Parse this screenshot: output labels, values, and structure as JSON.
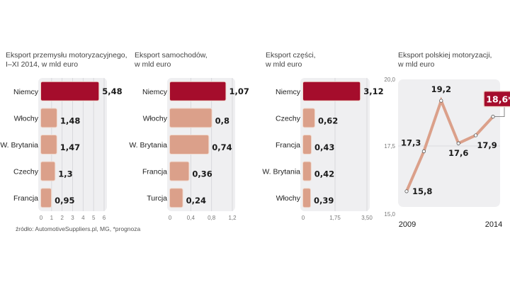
{
  "colors": {
    "highlight": "#a50d2c",
    "bar": "#dba08a",
    "bar_border": "#f0d8cc",
    "panel_bg": "#efeff1",
    "line": "#dba08a"
  },
  "source": "źródło: AutomotiveSuppliers.pl, MG, *prognoza",
  "chart_data": [
    {
      "type": "bar",
      "orientation": "horizontal",
      "title": "Eksport przemysłu motoryzacyjnego,\nI–XI 2014, w mld euro",
      "title_lines": [
        "Eksport przemysłu motoryzacyjnego,",
        "I–XI 2014, w mld euro"
      ],
      "categories": [
        "Niemcy",
        "Włochy",
        "W. Brytania",
        "Czechy",
        "Francja"
      ],
      "values": [
        5.48,
        1.48,
        1.47,
        1.3,
        0.95
      ],
      "value_labels": [
        "5,48",
        "1,48",
        "1,47",
        "1,3",
        "0,95"
      ],
      "highlight_index": 0,
      "xlim": [
        0,
        6
      ],
      "ticks": [
        0,
        1,
        2,
        3,
        4,
        5,
        6
      ],
      "tick_labels": [
        "0",
        "1",
        "2",
        "3",
        "4",
        "5",
        "6"
      ],
      "grid": true
    },
    {
      "type": "bar",
      "orientation": "horizontal",
      "title": "Eksport samochodów,\nw mld euro",
      "title_lines": [
        "Eksport samochodów,",
        "w mld euro"
      ],
      "categories": [
        "Niemcy",
        "Włochy",
        "W. Brytania",
        "Francja",
        "Turcja"
      ],
      "values": [
        1.07,
        0.8,
        0.74,
        0.36,
        0.24
      ],
      "value_labels": [
        "1,07",
        "0,8",
        "0,74",
        "0,36",
        "0,24"
      ],
      "highlight_index": 0,
      "xlim": [
        0,
        1.2
      ],
      "ticks": [
        0,
        0.4,
        0.8,
        1.2
      ],
      "tick_labels": [
        "0",
        "0,4",
        "0,8",
        "1,2"
      ],
      "grid": true
    },
    {
      "type": "bar",
      "orientation": "horizontal",
      "title": "Eksport części,\nw mld euro",
      "title_lines": [
        "Eksport części,",
        "w mld euro"
      ],
      "categories": [
        "Niemcy",
        "Czechy",
        "Francja",
        "W. Brytania",
        "Włochy"
      ],
      "values": [
        3.12,
        0.62,
        0.43,
        0.42,
        0.39
      ],
      "value_labels": [
        "3,12",
        "0,62",
        "0,43",
        "0,42",
        "0,39"
      ],
      "highlight_index": 0,
      "xlim": [
        0,
        3.5
      ],
      "ticks": [
        0,
        1.75,
        3.5
      ],
      "tick_labels": [
        "0",
        "1,75",
        "3,50"
      ],
      "grid": true
    },
    {
      "type": "line",
      "title": "Eksport polskiej motoryzacji,\nw mld euro",
      "title_lines": [
        "Eksport polskiej motoryzacji,",
        "w mld euro"
      ],
      "x": [
        2009,
        2010,
        2011,
        2012,
        2013,
        2014
      ],
      "values": [
        15.8,
        17.3,
        19.2,
        17.6,
        17.9,
        18.6
      ],
      "value_labels": [
        "15,8",
        "17,3",
        "19,2",
        "17,6",
        "17,9",
        "18,6*"
      ],
      "highlight_index": 5,
      "annotation": "*prognoza",
      "ylim": [
        15.0,
        20.0
      ],
      "yticks": [
        15.0,
        17.5,
        20.0
      ],
      "ytick_labels": [
        "15,0",
        "17,5",
        "20,0"
      ],
      "xtick_labels": [
        "2009",
        "2014"
      ],
      "grid": true
    }
  ]
}
